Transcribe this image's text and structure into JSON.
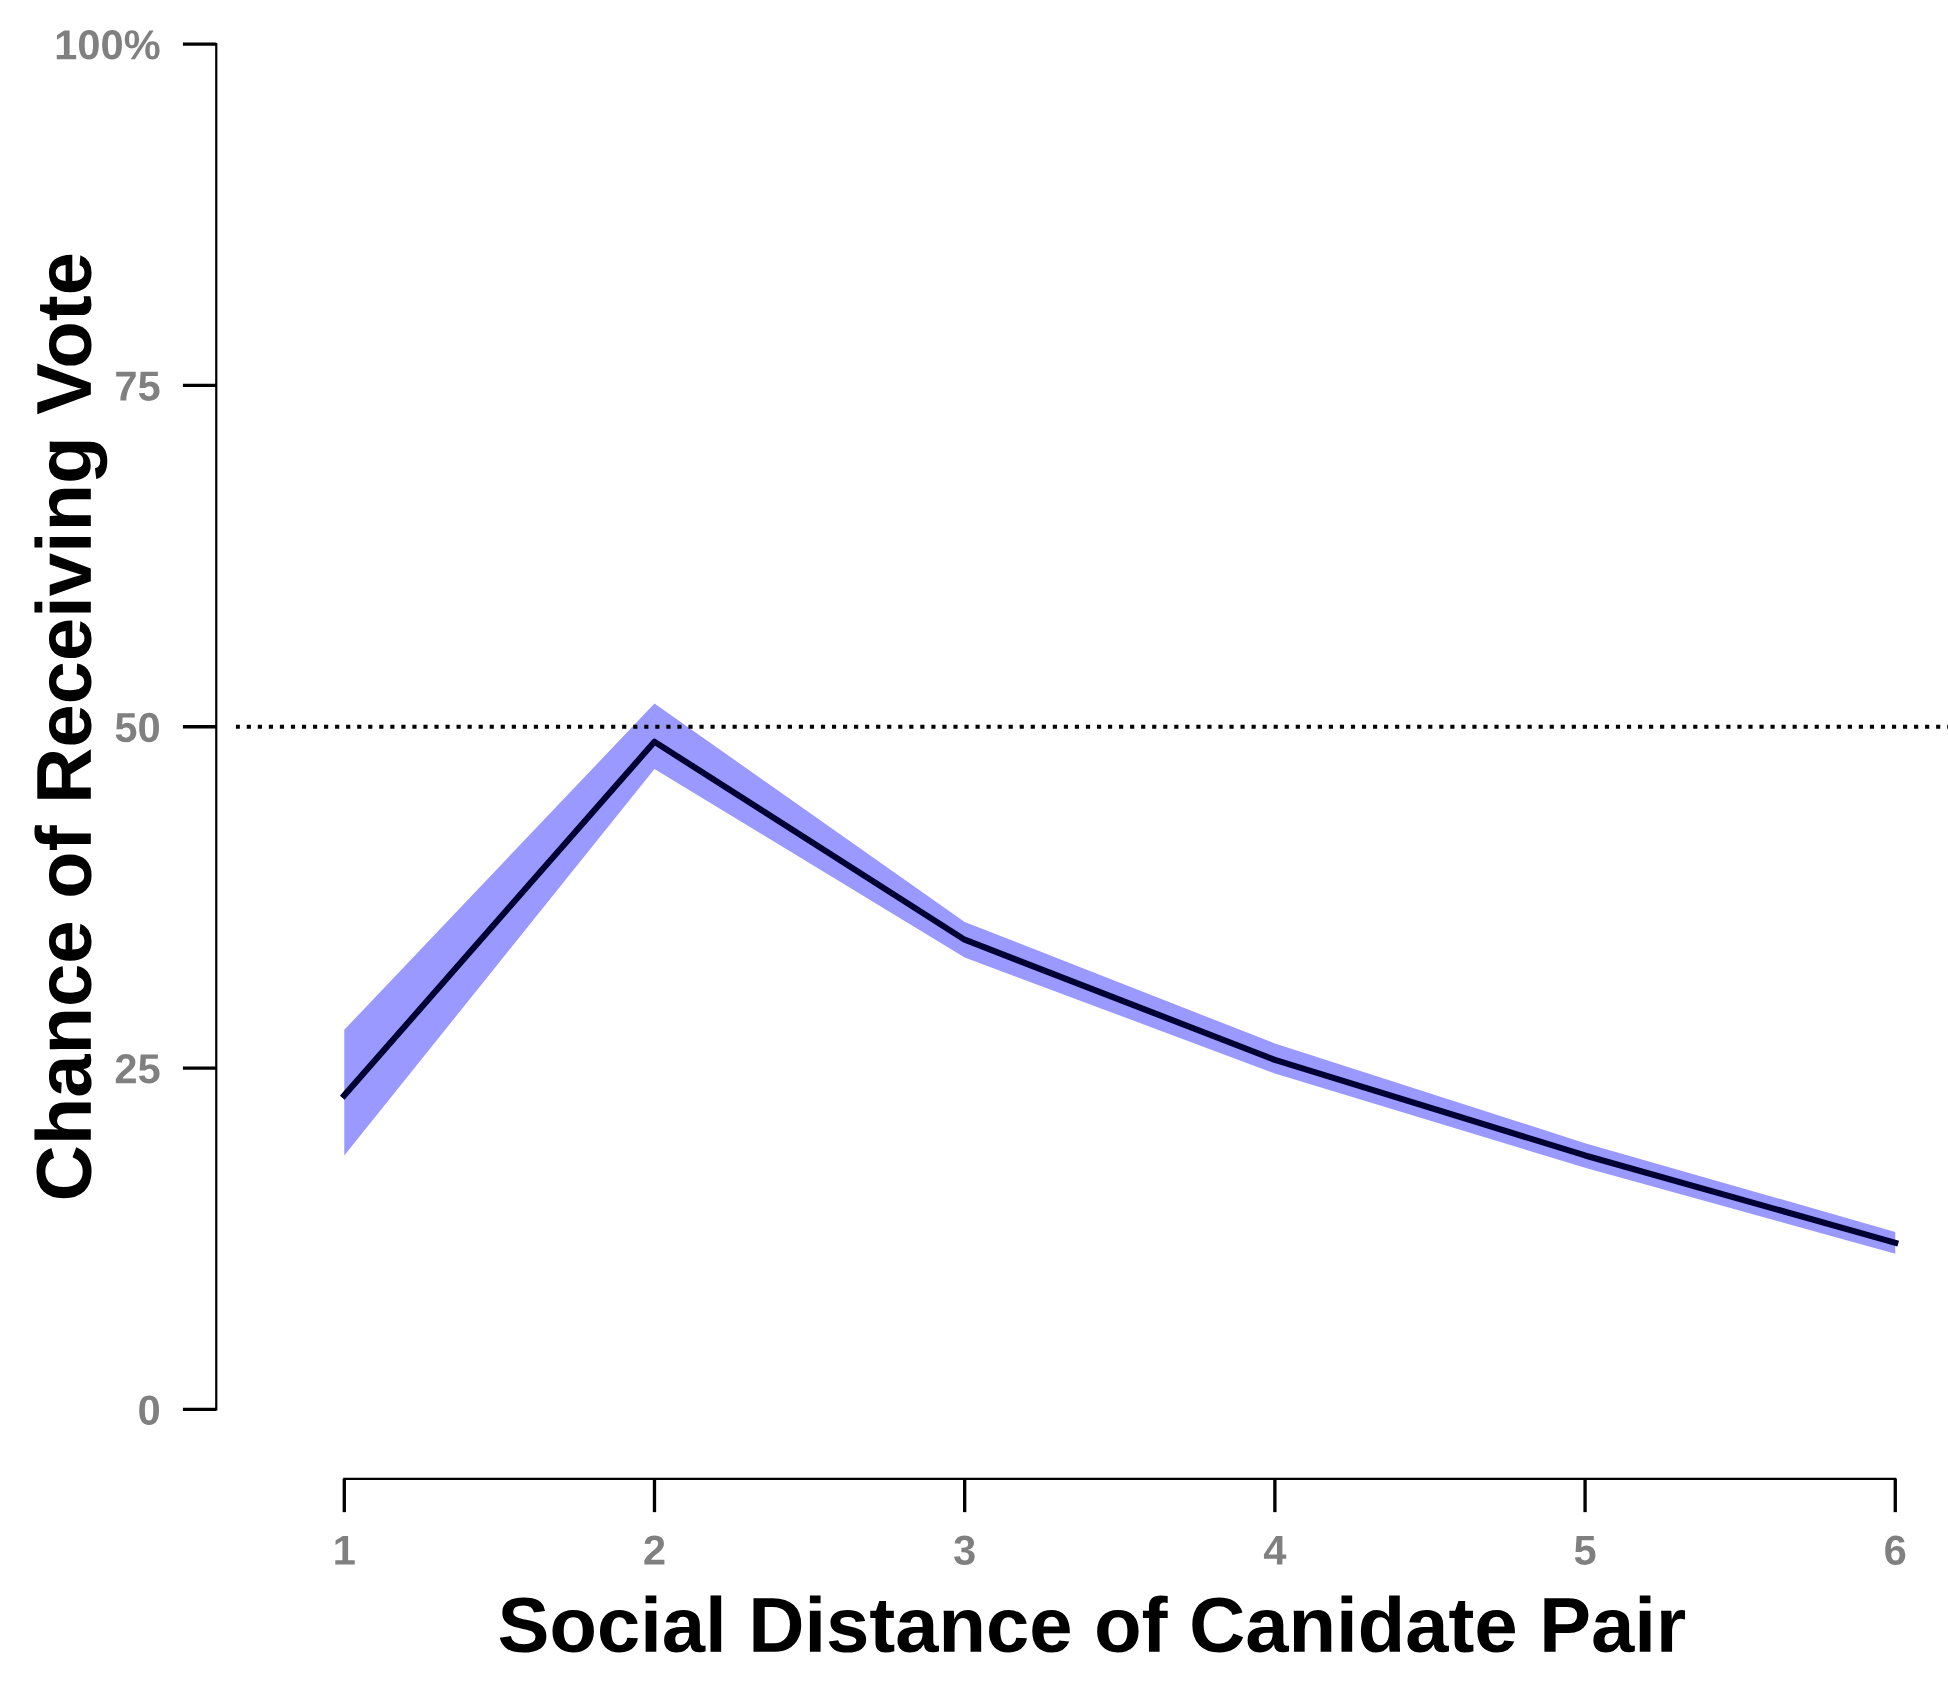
{
  "chart_data": {
    "type": "line",
    "xlabel": "Social Distance of Canidate Pair",
    "ylabel": "Chance of Receiving Vote",
    "x": [
      1,
      2,
      3,
      4,
      5,
      6
    ],
    "series": [
      {
        "color": "#000033",
        "values": [
          23.0,
          48.9,
          34.4,
          25.6,
          18.6,
          12.2
        ],
        "lower": [
          18.6,
          46.9,
          33.1,
          24.6,
          17.7,
          11.4
        ],
        "upper": [
          27.8,
          51.7,
          35.7,
          26.8,
          19.5,
          13.0
        ]
      }
    ],
    "xlim": [
      0.65,
      6.17
    ],
    "xticks": [
      1,
      2,
      3,
      4,
      5,
      6
    ],
    "ylim": [
      0,
      100
    ],
    "yticks": [
      0,
      25,
      50,
      75,
      {
        "value": 100,
        "label": "100%"
      }
    ],
    "ref_lines": [
      {
        "axis": "y",
        "value": 50,
        "line_style": "dotted",
        "color": "#000000"
      }
    ],
    "grid": false,
    "marker": "none",
    "line_style": "solid"
  }
}
